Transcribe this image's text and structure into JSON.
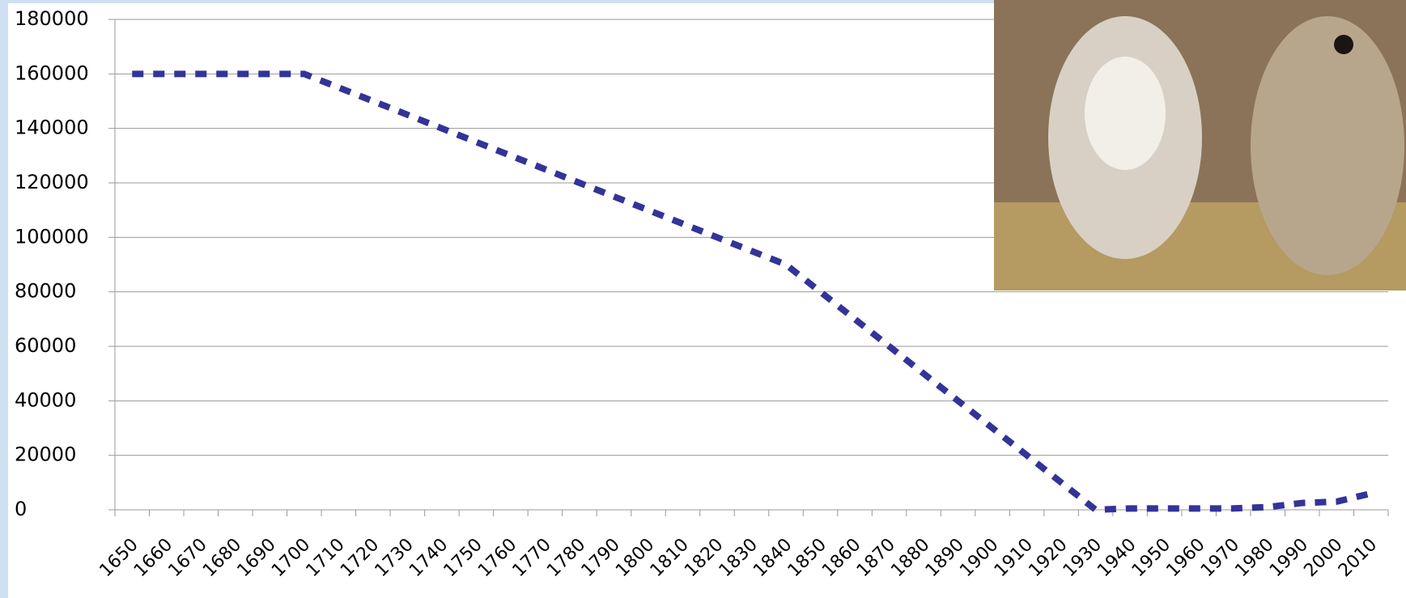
{
  "chart_data": {
    "type": "line",
    "categories": [
      "1650",
      "1660",
      "1670",
      "1680",
      "1690",
      "1700",
      "1710",
      "1720",
      "1730",
      "1740",
      "1750",
      "1760",
      "1770",
      "1780",
      "1790",
      "1800",
      "1810",
      "1820",
      "1830",
      "1840",
      "1850",
      "1860",
      "1870",
      "1880",
      "1890",
      "1900",
      "1910",
      "1920",
      "1930",
      "1940",
      "1950",
      "1960",
      "1970",
      "1980",
      "1990",
      "2000",
      "2010"
    ],
    "values": [
      160000,
      160000,
      160000,
      160000,
      160000,
      160000,
      155000,
      150000,
      145000,
      140000,
      135000,
      130000,
      125000,
      120000,
      115000,
      110000,
      105000,
      100000,
      95000,
      90000,
      80000,
      70000,
      60000,
      50000,
      40000,
      30000,
      20000,
      10000,
      0,
      500,
      500,
      500,
      500,
      1000,
      2500,
      3000,
      6000
    ],
    "color": "#333399",
    "ylim": [
      0,
      180000
    ],
    "yticks": [
      0,
      20000,
      40000,
      60000,
      80000,
      100000,
      120000,
      140000,
      160000,
      180000
    ],
    "grid": true
  }
}
